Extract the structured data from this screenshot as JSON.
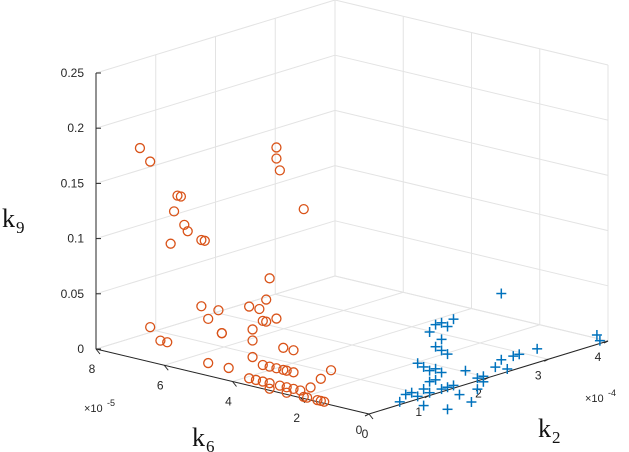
{
  "chart_data": {
    "type": "scatter3d",
    "axes": {
      "x": {
        "label": "k",
        "subscript": "2",
        "range": [
          0,
          4
        ],
        "ticks": [
          "0",
          "1",
          "2",
          "3",
          "4"
        ],
        "exponent_label": "×10",
        "exponent_power": "-4"
      },
      "y": {
        "label": "k",
        "subscript": "6",
        "range": [
          0,
          8
        ],
        "ticks": [
          "0",
          "2",
          "4",
          "6",
          "8"
        ],
        "exponent_label": "×10",
        "exponent_power": "-5"
      },
      "z": {
        "label": "k",
        "subscript": "9",
        "range": [
          0,
          0.25
        ],
        "ticks": [
          "0",
          "0.05",
          "0.1",
          "0.15",
          "0.2",
          "0.25"
        ]
      }
    },
    "grid": true,
    "series": [
      {
        "marker": "circle",
        "color": "#d95319",
        "points": [
          [
            0.05,
            6.8,
            0.19
          ],
          [
            0.05,
            6.5,
            0.18
          ],
          [
            0.05,
            6.5,
            0.03
          ],
          [
            0.05,
            6.2,
            0.02
          ],
          [
            0.05,
            6.0,
            0.02
          ],
          [
            0.05,
            5.8,
            0.14
          ],
          [
            0.05,
            5.7,
            0.155
          ],
          [
            0.05,
            5.6,
            0.155
          ],
          [
            0.05,
            5.5,
            0.13
          ],
          [
            0.05,
            5.4,
            0.125
          ],
          [
            0.05,
            5.9,
            0.11
          ],
          [
            0.05,
            5.0,
            0.12
          ],
          [
            0.05,
            4.9,
            0.12
          ],
          [
            0.05,
            5.0,
            0.06
          ],
          [
            0.05,
            4.8,
            0.05
          ],
          [
            0.05,
            4.5,
            0.06
          ],
          [
            0.05,
            4.4,
            0.04
          ],
          [
            0.05,
            4.4,
            0.04
          ],
          [
            0.05,
            4.8,
            0.01
          ],
          [
            0.05,
            4.2,
            0.01
          ],
          [
            0.05,
            3.6,
            0.07
          ],
          [
            0.05,
            3.3,
            0.07
          ],
          [
            0.05,
            3.2,
            0.06
          ],
          [
            0.05,
            3.5,
            0.05
          ],
          [
            0.05,
            3.0,
            0.1
          ],
          [
            0.05,
            3.1,
            0.08
          ],
          [
            0.05,
            3.1,
            0.06
          ],
          [
            0.05,
            2.8,
            0.065
          ],
          [
            0.05,
            2.6,
            0.04
          ],
          [
            0.05,
            2.3,
            0.04
          ],
          [
            0.05,
            2.8,
            0.22
          ],
          [
            0.05,
            2.8,
            0.21
          ],
          [
            0.05,
            2.7,
            0.2
          ],
          [
            0.05,
            2.0,
            0.17
          ],
          [
            0.05,
            3.5,
            0.04
          ],
          [
            0.05,
            3.5,
            0.025
          ],
          [
            0.05,
            3.2,
            0.02
          ],
          [
            0.05,
            3.0,
            0.02
          ],
          [
            0.05,
            2.8,
            0.02
          ],
          [
            0.05,
            2.6,
            0.02
          ],
          [
            0.05,
            2.5,
            0.02
          ],
          [
            0.05,
            2.3,
            0.02
          ],
          [
            0.05,
            3.6,
            0.005
          ],
          [
            0.05,
            3.4,
            0.005
          ],
          [
            0.05,
            3.2,
            0.005
          ],
          [
            0.05,
            3.0,
            0.005
          ],
          [
            0.05,
            2.7,
            0.005
          ],
          [
            0.05,
            2.5,
            0.005
          ],
          [
            0.05,
            2.3,
            0.005
          ],
          [
            0.05,
            2.1,
            0.005
          ],
          [
            0.05,
            3.0,
            0.0
          ],
          [
            0.05,
            2.5,
            0.0
          ],
          [
            0.05,
            2.0,
            0.0
          ],
          [
            0.05,
            1.9,
            0.0
          ],
          [
            0.05,
            1.6,
            0.0
          ],
          [
            0.05,
            1.5,
            0.0
          ],
          [
            0.05,
            1.4,
            0.0
          ],
          [
            0.05,
            1.8,
            0.01
          ],
          [
            0.05,
            1.5,
            0.02
          ],
          [
            0.05,
            1.2,
            0.03
          ]
        ]
      },
      {
        "marker": "plus",
        "color": "#0072bd",
        "points": [
          [
            1.1,
            0.15,
            0.055
          ],
          [
            1.2,
            0.15,
            0.06
          ],
          [
            1.3,
            0.15,
            0.06
          ],
          [
            1.4,
            0.15,
            0.055
          ],
          [
            1.5,
            0.15,
            0.06
          ],
          [
            1.3,
            0.15,
            0.045
          ],
          [
            1.2,
            0.15,
            0.04
          ],
          [
            1.3,
            0.15,
            0.035
          ],
          [
            1.4,
            0.15,
            0.03
          ],
          [
            2.3,
            0.15,
            0.07
          ],
          [
            3.95,
            0.15,
            0.0
          ],
          [
            3.9,
            0.15,
            0.006
          ],
          [
            0.9,
            0.15,
            0.03
          ],
          [
            1.0,
            0.15,
            0.025
          ],
          [
            1.1,
            0.15,
            0.02
          ],
          [
            1.2,
            0.15,
            0.02
          ],
          [
            1.3,
            0.15,
            0.015
          ],
          [
            1.2,
            0.15,
            0.01
          ],
          [
            1.1,
            0.15,
            0.01
          ],
          [
            1.0,
            0.15,
            0.005
          ],
          [
            1.1,
            0.15,
            0.0
          ],
          [
            1.0,
            0.15,
            -0.01
          ],
          [
            1.3,
            0.15,
            0.0
          ],
          [
            1.4,
            0.15,
            0.0
          ],
          [
            1.5,
            0.15,
            0.0
          ],
          [
            0.9,
            0.15,
            0.0
          ],
          [
            0.8,
            0.15,
            0.005
          ],
          [
            0.7,
            0.15,
            0.005
          ],
          [
            0.6,
            0.15,
            0.0
          ],
          [
            1.7,
            0.15,
            0.01
          ],
          [
            1.9,
            0.15,
            0.0
          ],
          [
            2.0,
            0.15,
            0.0
          ],
          [
            2.2,
            0.15,
            0.005
          ],
          [
            2.3,
            0.15,
            0.01
          ],
          [
            2.5,
            0.15,
            0.01
          ],
          [
            2.4,
            0.15,
            0.0
          ],
          [
            2.6,
            0.15,
            0.01
          ],
          [
            2.9,
            0.15,
            0.01
          ],
          [
            1.6,
            0.15,
            -0.01
          ],
          [
            1.8,
            0.15,
            -0.02
          ],
          [
            1.9,
            0.15,
            -0.01
          ],
          [
            2.0,
            0.15,
            -0.005
          ],
          [
            1.4,
            0.15,
            -0.02
          ]
        ]
      }
    ]
  }
}
